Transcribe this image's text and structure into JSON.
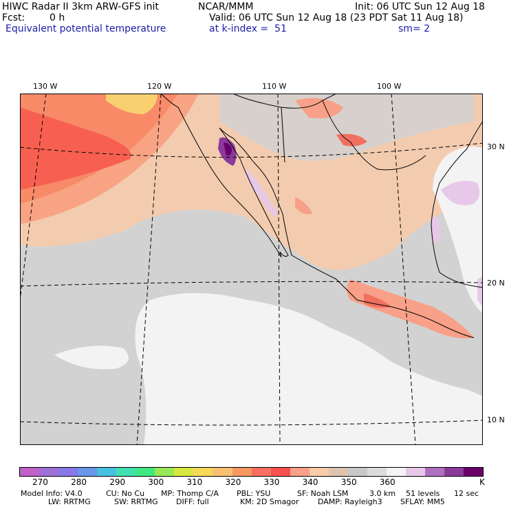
{
  "header": {
    "model": "HIWC Radar II 3km ARW-GFS init",
    "org": "NCAR/MMM",
    "init": "Init: 06 UTC Sun 12 Aug 18",
    "fcst_label": "Fcst:",
    "fcst_value": "0 h",
    "valid": "Valid: 06 UTC Sun 12 Aug 18 (23 PDT Sat 11 Aug 18)",
    "field": "Equivalent potential temperature",
    "level": "at k-index =  51",
    "smoothing": "sm= 2"
  },
  "map": {
    "lon_labels": [
      "130 W",
      "120 W",
      "110 W",
      "100 W"
    ],
    "lat_labels": [
      "30 N",
      "20 N",
      "10 N"
    ],
    "region": "Eastern Pacific / Mexico"
  },
  "colorbar": {
    "colors": [
      "#c060c8",
      "#a070d8",
      "#8878e8",
      "#6898e8",
      "#48c0e0",
      "#40e0b0",
      "#40e880",
      "#98e858",
      "#d8e840",
      "#f8d858",
      "#f8c070",
      "#f89860",
      "#f87060",
      "#f85050",
      "#f8a088",
      "#f8cca8",
      "#dcc4b0",
      "#c8c8c8",
      "#dcdcdc",
      "#f4f4f4",
      "#e8c8e8",
      "#b070c0",
      "#8a3a9a",
      "#6a006a"
    ],
    "labels": [
      "270",
      "280",
      "290",
      "300",
      "310",
      "320",
      "330",
      "340",
      "350",
      "360"
    ],
    "unit": "K"
  },
  "footer": {
    "line1": [
      {
        "k": "model_info",
        "t": "Model Info: V4.0"
      },
      {
        "k": "cu",
        "t": "CU: No Cu"
      },
      {
        "k": "mp",
        "t": "MP: Thomp C/A"
      },
      {
        "k": "pbl",
        "t": "PBL: YSU"
      },
      {
        "k": "sf",
        "t": "SF: Noah LSM"
      },
      {
        "k": "res",
        "t": "3.0 km"
      },
      {
        "k": "levels",
        "t": "51 levels"
      },
      {
        "k": "dt",
        "t": "12 sec"
      }
    ],
    "line2": [
      {
        "k": "lw",
        "t": "LW: RRTMG"
      },
      {
        "k": "sw",
        "t": "SW: RRTMG"
      },
      {
        "k": "diff",
        "t": "DIFF: full"
      },
      {
        "k": "km",
        "t": "KM: 2D Smagor"
      },
      {
        "k": "damp",
        "t": "DAMP: Rayleigh3"
      },
      {
        "k": "sflay",
        "t": "SFLAY: MM5"
      }
    ]
  }
}
